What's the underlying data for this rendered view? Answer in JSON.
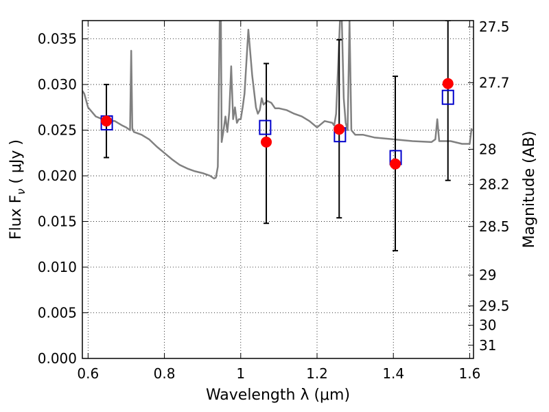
{
  "chart_data": {
    "type": "scatter",
    "xlabel": "Wavelength  λ (μm)",
    "ylabel": "Flux  F",
    "ylabel_sub": "ν",
    "ylabel_unit": " ( μJy )",
    "y2label": "Magnitude (AB)",
    "xlim": [
      0.585,
      1.61
    ],
    "ylim": [
      0.0,
      0.037
    ],
    "x_ticks": [
      0.6,
      0.8,
      1.0,
      1.2,
      1.4,
      1.6
    ],
    "x_tick_labels": [
      "0.6",
      "0.8",
      "1",
      "1.2",
      "1.4",
      "1.6"
    ],
    "y_ticks": [
      0.0,
      0.005,
      0.01,
      0.015,
      0.02,
      0.025,
      0.03,
      0.035
    ],
    "y_tick_labels": [
      "0.000",
      "0.005",
      "0.010",
      "0.015",
      "0.020",
      "0.025",
      "0.030",
      "0.035"
    ],
    "y2_ticks": [
      27.5,
      27.7,
      28,
      28.2,
      28.5,
      29,
      29.5,
      30,
      31
    ],
    "y2_tick_labels": [
      "27.5",
      "27.7",
      "28",
      "28.2",
      "28.5",
      "29",
      "29.5",
      "30",
      "31"
    ],
    "y2_scale": "AB magnitude of flux in μJy (m = 23.9 − 2.5·log10 F)",
    "grid": true,
    "colors": {
      "model": "#808080",
      "observed": "#ff0000",
      "model_photometry": "#0000cc",
      "errorbar": "#000000"
    },
    "series": [
      {
        "style": "line",
        "color": "#808080",
        "x": [
          0.585,
          0.59,
          0.6,
          0.62,
          0.65,
          0.67,
          0.69,
          0.7,
          0.71,
          0.713,
          0.716,
          0.72,
          0.74,
          0.76,
          0.78,
          0.8,
          0.82,
          0.84,
          0.86,
          0.88,
          0.9,
          0.92,
          0.93,
          0.935,
          0.94,
          0.945,
          0.948,
          0.95,
          0.955,
          0.96,
          0.965,
          0.97,
          0.975,
          0.98,
          0.985,
          0.99,
          0.995,
          1.0,
          1.005,
          1.01,
          1.02,
          1.03,
          1.04,
          1.045,
          1.05,
          1.055,
          1.06,
          1.07,
          1.08,
          1.09,
          1.1,
          1.12,
          1.14,
          1.16,
          1.18,
          1.2,
          1.22,
          1.24,
          1.245,
          1.25,
          1.26,
          1.265,
          1.27,
          1.275,
          1.28,
          1.285,
          1.29,
          1.3,
          1.32,
          1.35,
          1.4,
          1.45,
          1.5,
          1.51,
          1.515,
          1.52,
          1.55,
          1.58,
          1.6,
          1.605
        ],
        "y": [
          0.0293,
          0.029,
          0.0275,
          0.0265,
          0.026,
          0.026,
          0.0255,
          0.0253,
          0.025,
          0.0337,
          0.0252,
          0.0248,
          0.0245,
          0.024,
          0.0232,
          0.0225,
          0.0218,
          0.0212,
          0.0208,
          0.0205,
          0.0203,
          0.02,
          0.0197,
          0.0198,
          0.021,
          0.037,
          0.037,
          0.0237,
          0.025,
          0.0265,
          0.0248,
          0.027,
          0.032,
          0.0262,
          0.0275,
          0.0258,
          0.0262,
          0.0262,
          0.0275,
          0.029,
          0.036,
          0.031,
          0.0275,
          0.0268,
          0.0272,
          0.0285,
          0.0278,
          0.0282,
          0.028,
          0.0274,
          0.0274,
          0.0272,
          0.0268,
          0.0265,
          0.026,
          0.0253,
          0.026,
          0.0258,
          0.0255,
          0.0268,
          0.037,
          0.037,
          0.0285,
          0.0258,
          0.025,
          0.037,
          0.025,
          0.0245,
          0.0245,
          0.0242,
          0.024,
          0.0238,
          0.0237,
          0.024,
          0.0262,
          0.0238,
          0.0238,
          0.0235,
          0.0235,
          0.0252
        ]
      },
      {
        "style": "points",
        "color": "#ff0000",
        "x": [
          0.648,
          1.067,
          1.258,
          1.405,
          1.543
        ],
        "y": [
          0.026,
          0.0237,
          0.0251,
          0.0213,
          0.0301
        ],
        "yerr_low": [
          0.022,
          0.0148,
          0.0154,
          0.0118,
          0.0195
        ],
        "yerr_high": [
          0.03,
          0.0323,
          0.0349,
          0.0309,
          0.037
        ]
      },
      {
        "style": "open-squares",
        "color": "#0000cc",
        "x": [
          0.649,
          1.064,
          1.26,
          1.406,
          1.543
        ],
        "y": [
          0.0258,
          0.0253,
          0.0245,
          0.022,
          0.0286
        ]
      }
    ]
  }
}
